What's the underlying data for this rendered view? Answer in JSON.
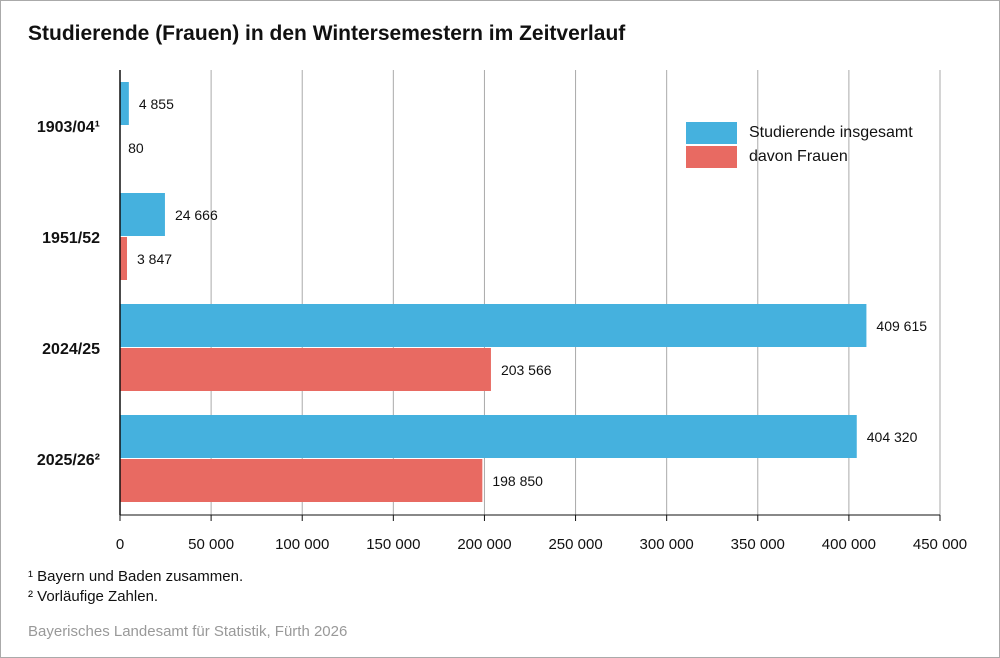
{
  "title": "Studierende (Frauen) in den Wintersemestern im Zeitverlauf",
  "footnotes": [
    "¹ Bayern und Baden zusammen.",
    "² Vorläufige Zahlen."
  ],
  "source": "Bayerisches Landesamt für Statistik, Fürth 2026",
  "chart_data": {
    "type": "bar",
    "orientation": "horizontal",
    "title": "Studierende (Frauen) in den Wintersemestern im Zeitverlauf",
    "categories": [
      "1903/04¹",
      "1951/52",
      "2024/25",
      "2025/26²"
    ],
    "series": [
      {
        "name": "Studierende insgesamt",
        "color": "#45b1de",
        "values": [
          4855,
          24666,
          409615,
          404320
        ],
        "labels": [
          "4 855",
          "24 666",
          "409 615",
          "404 320"
        ]
      },
      {
        "name": "davon Frauen",
        "color": "#e86a62",
        "values": [
          80,
          3847,
          203566,
          198850
        ],
        "labels": [
          "80",
          "3 847",
          "203 566",
          "198 850"
        ]
      }
    ],
    "xlim": [
      0,
      450000
    ],
    "xticks": [
      0,
      50000,
      100000,
      150000,
      200000,
      250000,
      300000,
      350000,
      400000,
      450000
    ],
    "xtick_labels": [
      "0",
      "50 000",
      "100 000",
      "150 000",
      "200 000",
      "250 000",
      "300 000",
      "350 000",
      "400 000",
      "450 000"
    ],
    "grid": true,
    "legend": "top-right"
  }
}
